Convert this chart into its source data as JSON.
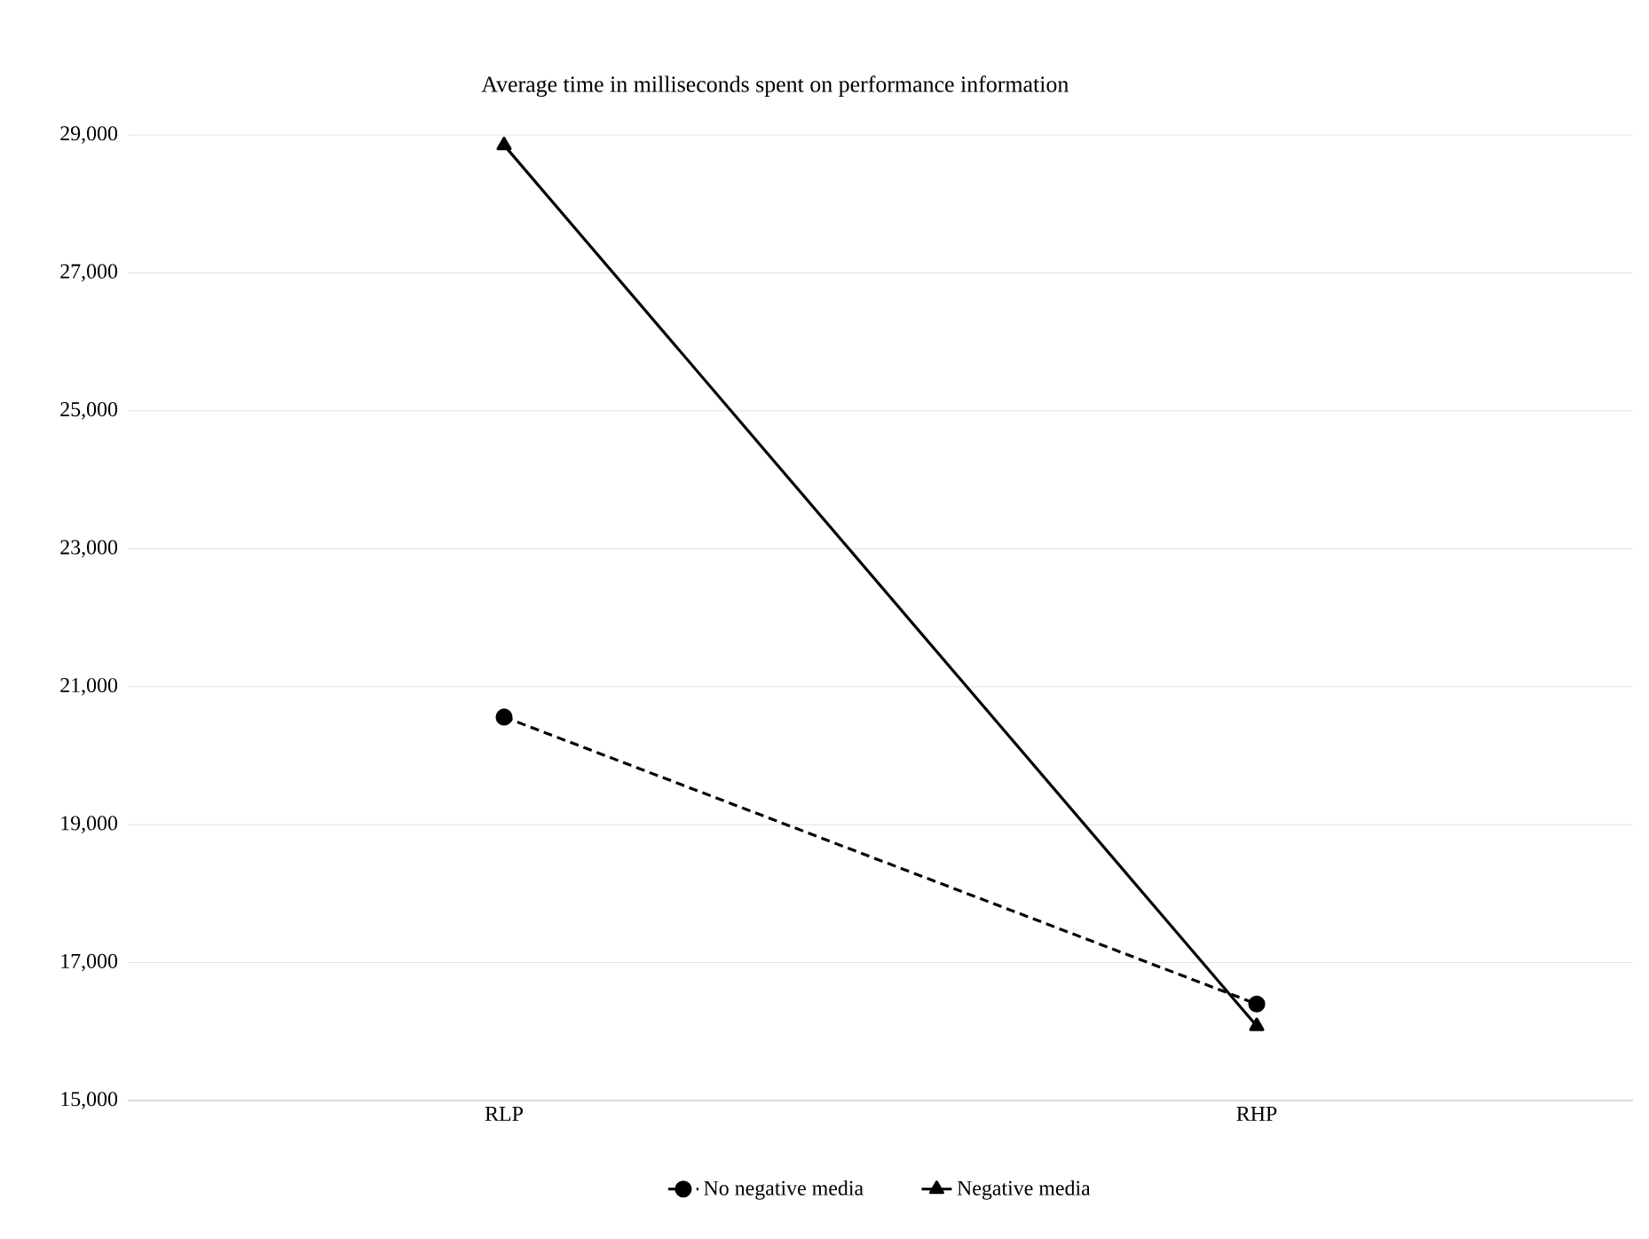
{
  "chart_data": {
    "type": "line",
    "title": "Average time in milliseconds spent on performance information",
    "categories": [
      "RLP",
      "RHP"
    ],
    "series": [
      {
        "name": "No negative media",
        "color": "#000000",
        "values": [
          20560,
          16400
        ],
        "marker": "circle",
        "line_style": "dashed"
      },
      {
        "name": "Negative media",
        "color": "#000000",
        "values": [
          28850,
          16080
        ],
        "marker": "triangle",
        "line_style": "solid"
      }
    ],
    "ylim": [
      15000,
      29000
    ],
    "yticks": [
      {
        "value": 15000,
        "label": "15,000"
      },
      {
        "value": 17000,
        "label": "17,000"
      },
      {
        "value": 19000,
        "label": "19,000"
      },
      {
        "value": 21000,
        "label": "21,000"
      },
      {
        "value": 23000,
        "label": "23,000"
      },
      {
        "value": 25000,
        "label": "25,000"
      },
      {
        "value": 27000,
        "label": "27,000"
      },
      {
        "value": 29000,
        "label": "29,000"
      }
    ],
    "grid": "y",
    "legend": "bottom"
  }
}
